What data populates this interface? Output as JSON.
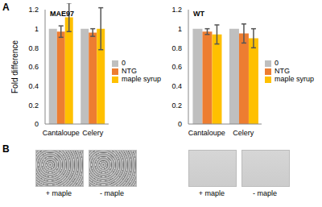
{
  "panel_labels": [
    "A",
    "B"
  ],
  "chart_data": [
    {
      "type": "bar",
      "title": "MAE97",
      "ylabel": "Fold difference",
      "categories": [
        "Cantaloupe",
        "Celery"
      ],
      "series": [
        {
          "name": "0",
          "color": "#bfbfbf",
          "values": [
            1,
            1
          ]
        },
        {
          "name": "NTG",
          "color": "#ed7d31",
          "values": [
            0.97,
            0.96
          ],
          "errors": [
            0.06,
            0.04
          ]
        },
        {
          "name": "maple syrup",
          "color": "#ffc000",
          "values": [
            1.12,
            1.0
          ],
          "errors": [
            0.15,
            0.22
          ]
        }
      ],
      "ylim": [
        0,
        1.2
      ],
      "yticks": [
        0,
        0.2,
        0.4,
        0.6,
        0.8,
        1,
        1.2
      ],
      "grid": false,
      "legend": "right"
    },
    {
      "type": "bar",
      "title": "WT",
      "categories": [
        "Cantaloupe",
        "Celery"
      ],
      "series": [
        {
          "name": "0",
          "color": "#bfbfbf",
          "values": [
            1,
            1
          ]
        },
        {
          "name": "NTG",
          "color": "#ed7d31",
          "values": [
            0.97,
            0.95
          ],
          "errors": [
            0.03,
            0.1
          ]
        },
        {
          "name": "maple syrup",
          "color": "#ffc000",
          "values": [
            0.94,
            0.9
          ],
          "errors": [
            0.1,
            0.1
          ]
        }
      ],
      "ylim": [
        0,
        1.2
      ],
      "yticks": [
        0,
        0.2,
        0.4,
        0.6,
        0.8,
        1,
        1.2
      ],
      "grid": false,
      "legend": "right"
    }
  ],
  "panel_B": [
    [
      "+ maple",
      "- maple"
    ],
    [
      "+ maple",
      "- maple"
    ]
  ]
}
